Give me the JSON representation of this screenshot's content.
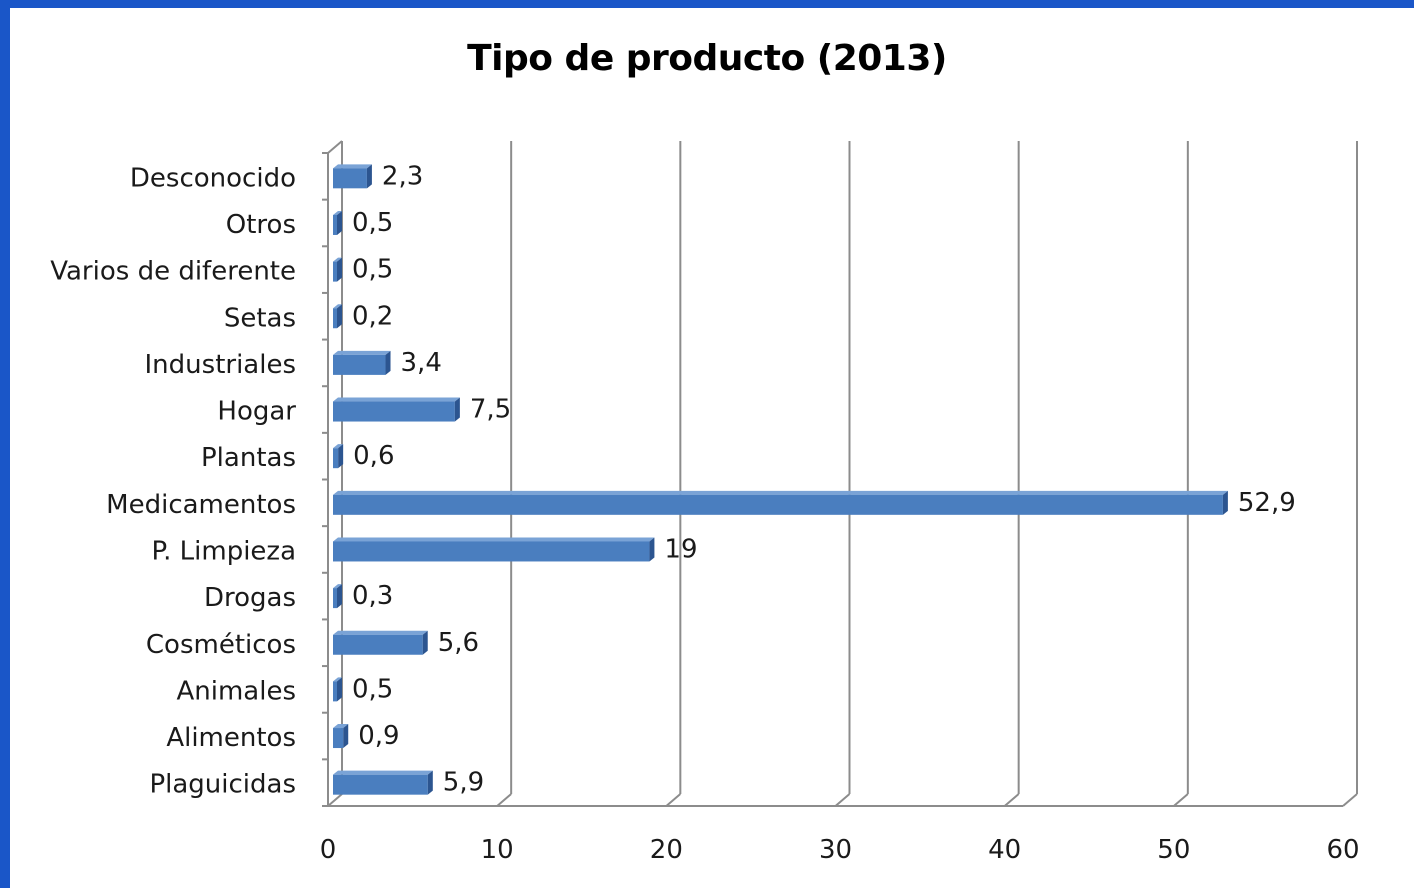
{
  "chart_data": {
    "type": "bar",
    "orientation": "horizontal",
    "title": "Tipo de producto (2013)",
    "categories": [
      "Desconocido",
      "Otros",
      "Varios de diferente",
      "Setas",
      "Industriales",
      "Hogar",
      "Plantas",
      "Medicamentos",
      "P. Limpieza",
      "Drogas",
      "Cosméticos",
      "Animales",
      "Alimentos",
      "Plaguicidas"
    ],
    "values": [
      2.3,
      0.5,
      0.5,
      0.2,
      3.4,
      7.5,
      0.6,
      52.9,
      19,
      0.3,
      5.6,
      0.5,
      0.9,
      5.9
    ],
    "value_labels": [
      "2,3",
      "0,5",
      "0,5",
      "0,2",
      "3,4",
      "7,5",
      "0,6",
      "52,9",
      "19",
      "0,3",
      "5,6",
      "0,5",
      "0,9",
      "5,9"
    ],
    "xlim": [
      0,
      60
    ],
    "xticks": [
      0,
      10,
      20,
      30,
      40,
      50,
      60
    ],
    "xtick_labels": [
      "0",
      "10",
      "20",
      "30",
      "40",
      "50",
      "60"
    ],
    "grid": true,
    "legend": "none",
    "colors": {
      "bar_front": "#4a7ebf",
      "bar_top": "#7aa3d6",
      "bar_side": "#2c5590",
      "gridline": "#8c8c8c",
      "frame_border": "#1a56c8"
    }
  }
}
